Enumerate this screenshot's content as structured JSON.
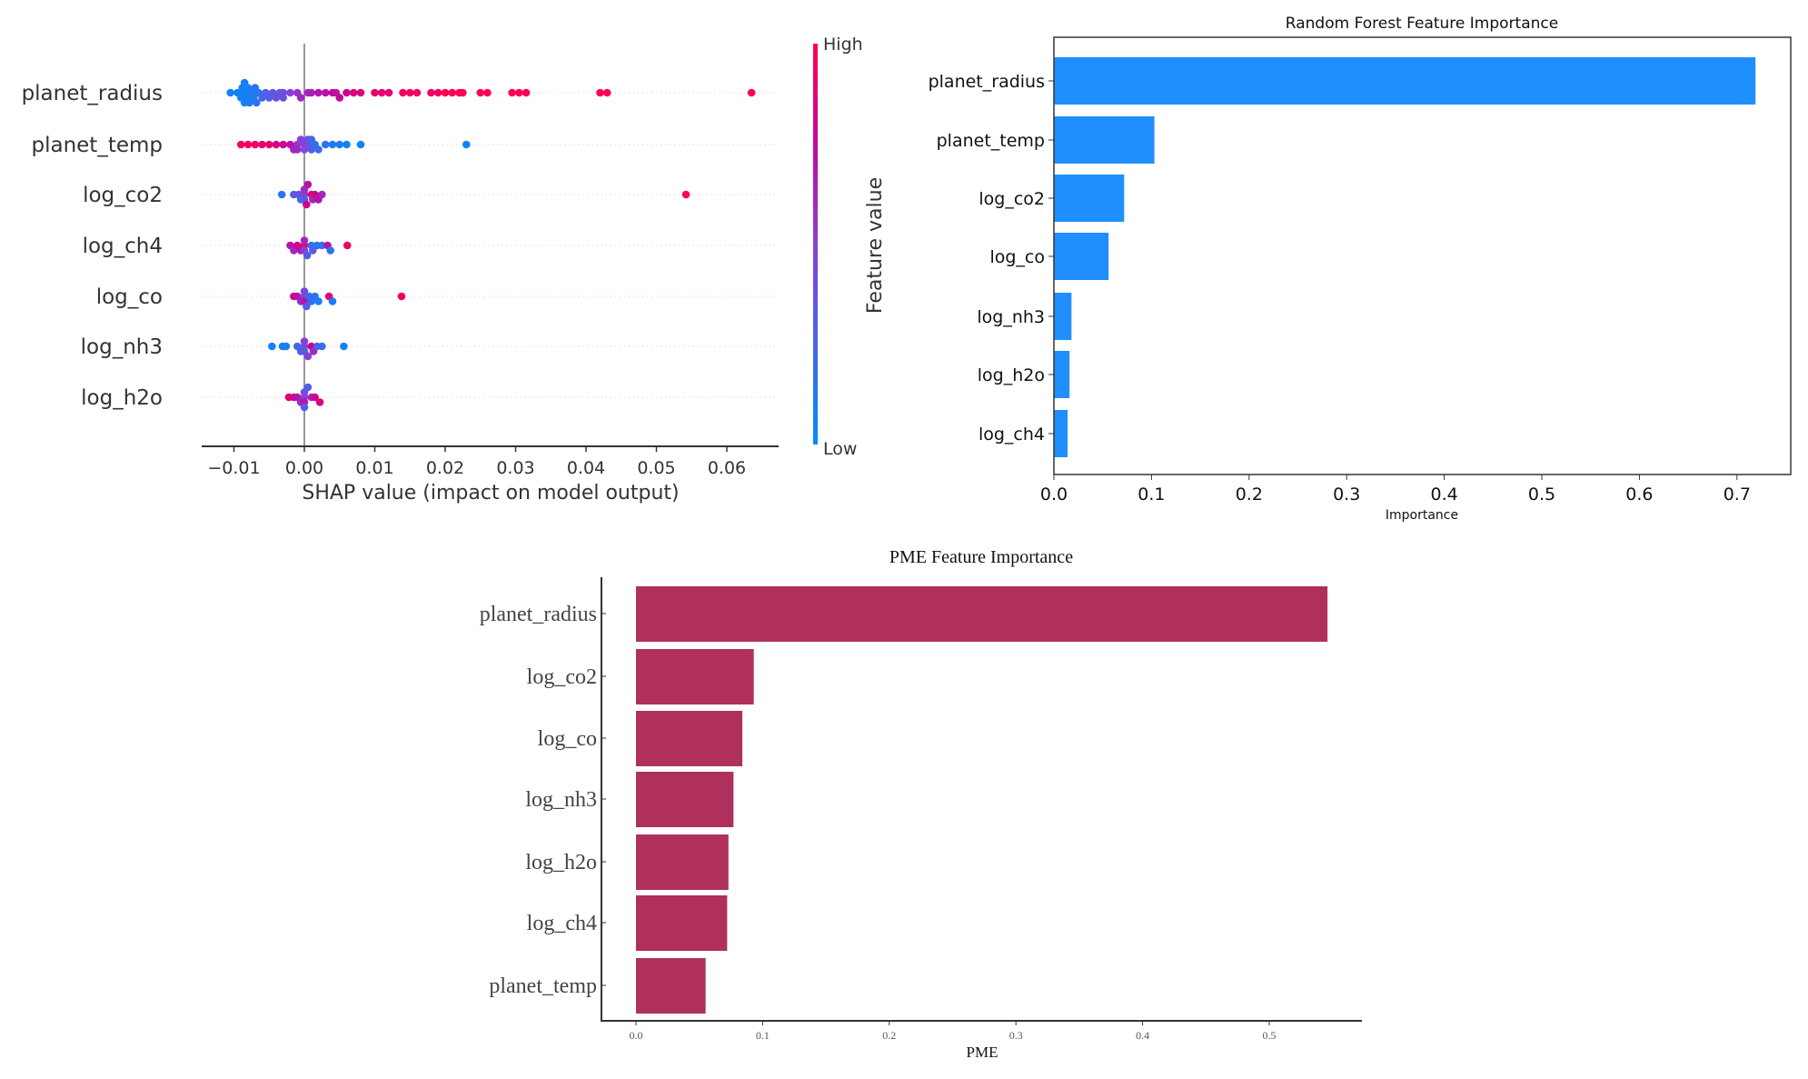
{
  "chart_data": [
    {
      "type": "scatter",
      "subtype": "shap-beeswarm",
      "xlabel": "SHAP value (impact on model output)",
      "xlim": [
        -0.0145,
        0.0675
      ],
      "xticks": [
        -0.01,
        0.0,
        0.01,
        0.02,
        0.03,
        0.04,
        0.05,
        0.06
      ],
      "xtick_labels": [
        "−0.01",
        "0.00",
        "0.01",
        "0.02",
        "0.03",
        "0.04",
        "0.05",
        "0.06"
      ],
      "colorbar": {
        "label": "Feature value",
        "high": "High",
        "low": "Low",
        "high_color": "#ff0052",
        "low_color": "#008bfb"
      },
      "features": [
        {
          "name": "planet_radius",
          "points": [
            [
              -0.0105,
              0.05
            ],
            [
              -0.0095,
              0.05
            ],
            [
              -0.009,
              0.05
            ],
            [
              -0.009,
              0.08
            ],
            [
              -0.0088,
              0.1
            ],
            [
              -0.0085,
              0.05
            ],
            [
              -0.0085,
              0.1
            ],
            [
              -0.0082,
              0.08
            ],
            [
              -0.008,
              0.1
            ],
            [
              -0.008,
              0.06
            ],
            [
              -0.0078,
              0.1
            ],
            [
              -0.0075,
              0.12
            ],
            [
              -0.0072,
              0.1
            ],
            [
              -0.007,
              0.15
            ],
            [
              -0.0068,
              0.2
            ],
            [
              -0.0065,
              0.15
            ],
            [
              -0.006,
              0.25
            ],
            [
              -0.0055,
              0.3
            ],
            [
              -0.005,
              0.3
            ],
            [
              -0.0045,
              0.35
            ],
            [
              -0.004,
              0.4
            ],
            [
              -0.0035,
              0.35
            ],
            [
              -0.003,
              0.4
            ],
            [
              -0.003,
              0.4
            ],
            [
              -0.002,
              0.5
            ],
            [
              -0.001,
              0.55
            ],
            [
              -0.0005,
              0.6
            ],
            [
              0.0005,
              0.6
            ],
            [
              0.001,
              0.65
            ],
            [
              0.002,
              0.7
            ],
            [
              0.003,
              0.7
            ],
            [
              0.004,
              0.75
            ],
            [
              0.0045,
              0.7
            ],
            [
              0.005,
              0.75
            ],
            [
              0.006,
              0.8
            ],
            [
              0.007,
              0.85
            ],
            [
              0.008,
              0.85
            ],
            [
              0.01,
              0.9
            ],
            [
              0.011,
              0.9
            ],
            [
              0.012,
              0.9
            ],
            [
              0.014,
              0.95
            ],
            [
              0.015,
              0.95
            ],
            [
              0.016,
              0.95
            ],
            [
              0.018,
              0.95
            ],
            [
              0.019,
              0.95
            ],
            [
              0.02,
              1
            ],
            [
              0.021,
              1
            ],
            [
              0.022,
              1
            ],
            [
              0.0225,
              1
            ],
            [
              0.025,
              1
            ],
            [
              0.026,
              1
            ],
            [
              0.0295,
              1
            ],
            [
              0.0305,
              1
            ],
            [
              0.0315,
              1
            ],
            [
              0.042,
              1
            ],
            [
              0.043,
              1
            ],
            [
              0.0635,
              1
            ]
          ]
        },
        {
          "name": "planet_temp",
          "points": [
            [
              -0.009,
              0.95
            ],
            [
              -0.008,
              0.95
            ],
            [
              -0.007,
              0.95
            ],
            [
              -0.006,
              0.9
            ],
            [
              -0.005,
              0.9
            ],
            [
              -0.004,
              0.85
            ],
            [
              -0.003,
              0.8
            ],
            [
              -0.002,
              0.7
            ],
            [
              -0.0015,
              0.6
            ],
            [
              -0.001,
              0.55
            ],
            [
              -0.001,
              0.6
            ],
            [
              -0.0005,
              0.5
            ],
            [
              0.0,
              0.5
            ],
            [
              0.0,
              0.45
            ],
            [
              0.0005,
              0.4
            ],
            [
              0.0008,
              0.35
            ],
            [
              0.001,
              0.3
            ],
            [
              0.001,
              0.25
            ],
            [
              0.0015,
              0.2
            ],
            [
              0.002,
              0.2
            ],
            [
              0.003,
              0.15
            ],
            [
              0.004,
              0.1
            ],
            [
              0.005,
              0.1
            ],
            [
              0.006,
              0.05
            ],
            [
              0.008,
              0.05
            ],
            [
              0.023,
              0.05
            ]
          ]
        },
        {
          "name": "log_co2",
          "points": [
            [
              -0.0032,
              0.15
            ],
            [
              -0.0015,
              0.3
            ],
            [
              -0.0008,
              0.4
            ],
            [
              -0.0005,
              0.2
            ],
            [
              0.0,
              0.5
            ],
            [
              0.0,
              0.3
            ],
            [
              0.0,
              0.6
            ],
            [
              0.0003,
              0.8
            ],
            [
              0.0005,
              0.7
            ],
            [
              0.001,
              0.9
            ],
            [
              0.0012,
              0.6
            ],
            [
              0.0015,
              0.8
            ],
            [
              0.002,
              0.7
            ],
            [
              0.0025,
              0.6
            ],
            [
              0.0542,
              1
            ]
          ]
        },
        {
          "name": "log_ch4",
          "points": [
            [
              -0.002,
              0.7
            ],
            [
              -0.0015,
              0.6
            ],
            [
              -0.001,
              0.8
            ],
            [
              -0.0005,
              0.7
            ],
            [
              0.0,
              0.9
            ],
            [
              0.0,
              0.5
            ],
            [
              0.0,
              0.6
            ],
            [
              0.0004,
              0.3
            ],
            [
              0.001,
              0.2
            ],
            [
              0.0012,
              0.3
            ],
            [
              0.0018,
              0.15
            ],
            [
              0.0025,
              0.2
            ],
            [
              0.0033,
              0.7
            ],
            [
              0.0037,
              0.15
            ],
            [
              0.0061,
              0.95
            ]
          ]
        },
        {
          "name": "log_co",
          "points": [
            [
              -0.0015,
              0.8
            ],
            [
              -0.001,
              0.7
            ],
            [
              -0.0005,
              0.6
            ],
            [
              0.0,
              0.5
            ],
            [
              0.0,
              0.7
            ],
            [
              0.0,
              0.4
            ],
            [
              0.0003,
              0.3
            ],
            [
              0.0007,
              0.2
            ],
            [
              0.001,
              0.2
            ],
            [
              0.0015,
              0.15
            ],
            [
              0.002,
              0.1
            ],
            [
              0.0035,
              0.9
            ],
            [
              0.004,
              0.1
            ],
            [
              0.0138,
              0.95
            ]
          ]
        },
        {
          "name": "log_nh3",
          "points": [
            [
              -0.0046,
              0.05
            ],
            [
              -0.0031,
              0.05
            ],
            [
              -0.0026,
              0.1
            ],
            [
              -0.001,
              0.2
            ],
            [
              -0.0005,
              0.3
            ],
            [
              0.0,
              0.4
            ],
            [
              0.0,
              0.3
            ],
            [
              0.0,
              0.5
            ],
            [
              0.0005,
              0.5
            ],
            [
              0.001,
              0.8
            ],
            [
              0.0013,
              0.6
            ],
            [
              0.0018,
              0.3
            ],
            [
              0.0025,
              0.2
            ],
            [
              0.0056,
              0.05
            ]
          ]
        },
        {
          "name": "log_h2o",
          "points": [
            [
              -0.0022,
              0.9
            ],
            [
              -0.0015,
              0.8
            ],
            [
              -0.001,
              0.7
            ],
            [
              -0.0005,
              0.6
            ],
            [
              0.0,
              0.5
            ],
            [
              0.0,
              0.7
            ],
            [
              0.0,
              0.4
            ],
            [
              0.0,
              0.3
            ],
            [
              0.0005,
              0.3
            ],
            [
              0.001,
              0.6
            ],
            [
              0.0015,
              0.8
            ],
            [
              0.0022,
              0.85
            ]
          ]
        }
      ]
    },
    {
      "type": "bar",
      "orientation": "horizontal",
      "title": "Random Forest Feature Importance",
      "xlabel": "Importance",
      "xlim": [
        0,
        0.755
      ],
      "xticks": [
        "0.0",
        "0.1",
        "0.2",
        "0.3",
        "0.4",
        "0.5",
        "0.6",
        "0.7"
      ],
      "color": "#1f8fff",
      "categories": [
        "planet_radius",
        "planet_temp",
        "log_co2",
        "log_co",
        "log_nh3",
        "log_h2o",
        "log_ch4"
      ],
      "values": [
        0.719,
        0.103,
        0.072,
        0.056,
        0.018,
        0.016,
        0.014
      ]
    },
    {
      "type": "bar",
      "orientation": "horizontal",
      "title": "PME Feature Importance",
      "xlabel": "PME",
      "xlim": [
        -0.027,
        0.57
      ],
      "xticks": [
        "0.0",
        "0.1",
        "0.2",
        "0.3",
        "0.4",
        "0.5"
      ],
      "color": "#b0305d",
      "categories": [
        "planet_radius",
        "log_co2",
        "log_co",
        "log_nh3",
        "log_h2o",
        "log_ch4",
        "planet_temp"
      ],
      "values": [
        0.546,
        0.093,
        0.084,
        0.077,
        0.073,
        0.072,
        0.055
      ]
    }
  ]
}
